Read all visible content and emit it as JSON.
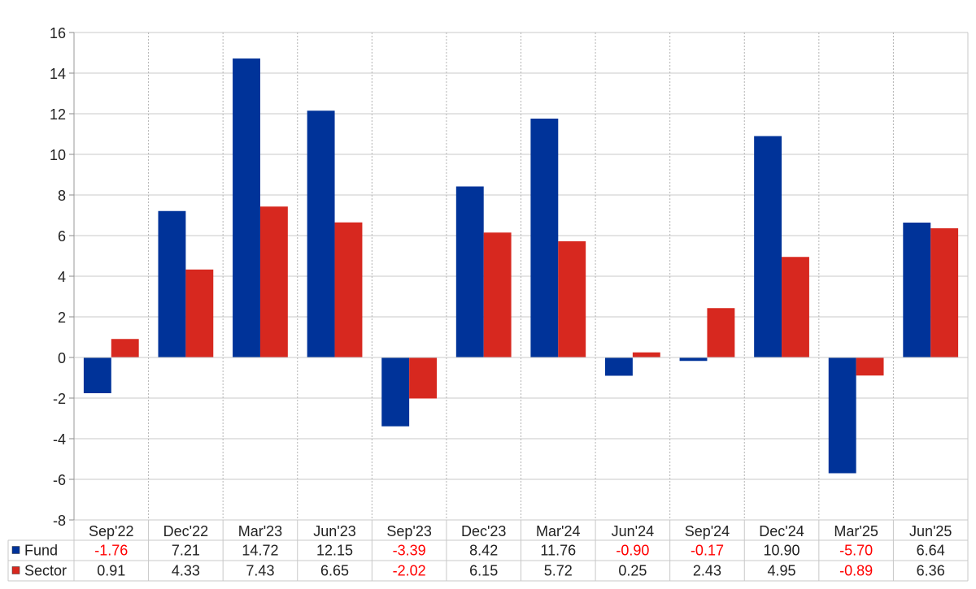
{
  "chart_data": {
    "type": "bar",
    "categories": [
      "Sep'22",
      "Dec'22",
      "Mar'23",
      "Jun'23",
      "Sep'23",
      "Dec'23",
      "Mar'24",
      "Jun'24",
      "Sep'24",
      "Dec'24",
      "Mar'25",
      "Jun'25"
    ],
    "series": [
      {
        "name": "Fund",
        "color": "#003399",
        "values": [
          -1.76,
          7.21,
          14.72,
          12.15,
          -3.39,
          8.42,
          11.76,
          -0.9,
          -0.17,
          10.9,
          -5.7,
          6.64
        ],
        "labels": [
          "-1.76",
          "7.21",
          "14.72",
          "12.15",
          "-3.39",
          "8.42",
          "11.76",
          "-0.90",
          "-0.17",
          "10.90",
          "-5.70",
          "6.64"
        ]
      },
      {
        "name": "Sector",
        "color": "#d7281f",
        "values": [
          0.91,
          4.33,
          7.43,
          6.65,
          -2.02,
          6.15,
          5.72,
          0.25,
          2.43,
          4.95,
          -0.89,
          6.36
        ],
        "labels": [
          "0.91",
          "4.33",
          "7.43",
          "6.65",
          "-2.02",
          "6.15",
          "5.72",
          "0.25",
          "2.43",
          "4.95",
          "-0.89",
          "6.36"
        ]
      }
    ],
    "ylim": [
      -8,
      16
    ],
    "yticks": [
      "-8",
      "-6",
      "-4",
      "-2",
      "0",
      "2",
      "4",
      "6",
      "8",
      "10",
      "12",
      "14",
      "16"
    ],
    "title": "",
    "xlabel": "",
    "ylabel": "",
    "grid": true,
    "legend": "data-table-bottom",
    "negative_label_color": "#ff0000"
  }
}
